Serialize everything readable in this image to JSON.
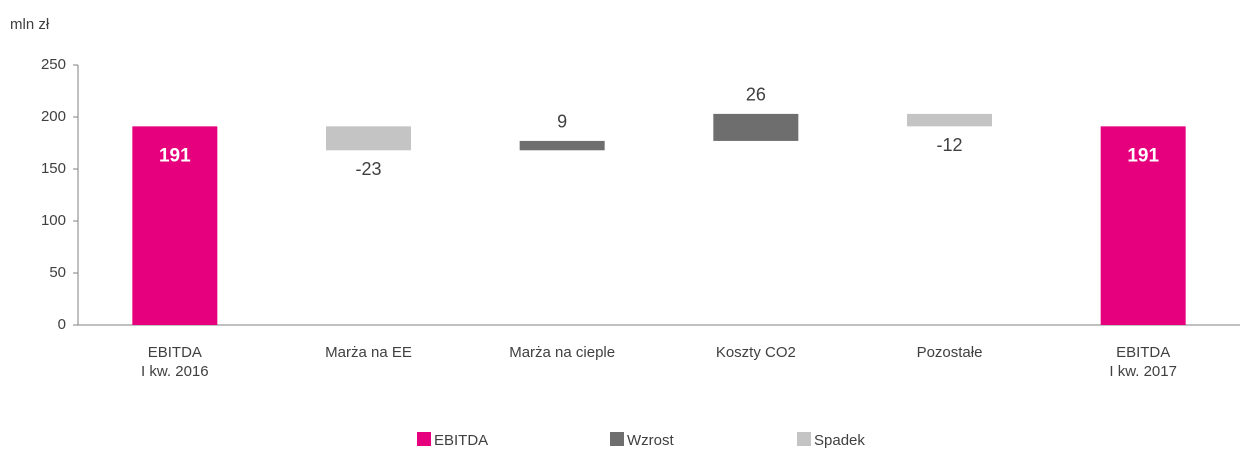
{
  "chart_data": {
    "type": "waterfall",
    "y_label": "mln zł",
    "categories": [
      [
        "EBITDA",
        "I kw. 2016"
      ],
      [
        "Marża na EE"
      ],
      [
        "Marża na cieple"
      ],
      [
        "Koszty CO2"
      ],
      [
        "Pozostałe"
      ],
      [
        "EBITDA",
        "I kw. 2017"
      ]
    ],
    "values": [
      191,
      -23,
      9,
      26,
      -12,
      191
    ],
    "legend": [
      {
        "name": "EBITDA",
        "color": "#e6007e"
      },
      {
        "name": "Wzrost",
        "color": "#6e6e6e"
      },
      {
        "name": "Spadek",
        "color": "#c4c4c4"
      }
    ],
    "ylim": [
      0,
      250
    ],
    "yticks": [
      0,
      50,
      100,
      150,
      200,
      250
    ]
  }
}
